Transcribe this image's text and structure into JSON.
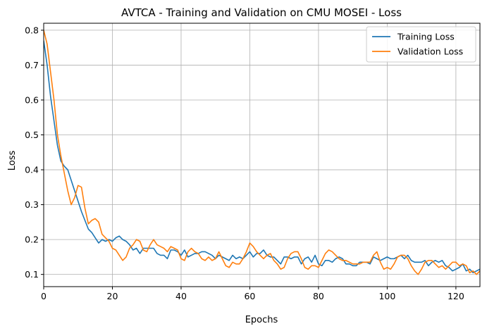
{
  "chart_data": {
    "type": "line",
    "title": "AVTCA - Training and Validation on CMU MOSEI - Loss",
    "xlabel": "Epochs",
    "ylabel": "Loss",
    "xlim": [
      0,
      127
    ],
    "ylim": [
      0.065,
      0.82
    ],
    "xticks": [
      0,
      20,
      40,
      60,
      80,
      100,
      120
    ],
    "yticks": [
      0.1,
      0.2,
      0.3,
      0.4,
      0.5,
      0.6,
      0.7,
      0.8
    ],
    "grid": true,
    "legend": "top-right",
    "series": [
      {
        "name": "Training Loss",
        "color": "#1f77b4",
        "values": [
          0.77,
          0.7,
          0.61,
          0.54,
          0.47,
          0.425,
          0.41,
          0.4,
          0.37,
          0.34,
          0.31,
          0.28,
          0.255,
          0.23,
          0.22,
          0.205,
          0.19,
          0.2,
          0.195,
          0.2,
          0.195,
          0.205,
          0.21,
          0.2,
          0.195,
          0.185,
          0.17,
          0.175,
          0.16,
          0.175,
          0.175,
          0.175,
          0.175,
          0.16,
          0.155,
          0.155,
          0.145,
          0.17,
          0.17,
          0.165,
          0.155,
          0.17,
          0.15,
          0.155,
          0.16,
          0.16,
          0.165,
          0.165,
          0.16,
          0.155,
          0.145,
          0.155,
          0.15,
          0.145,
          0.14,
          0.155,
          0.145,
          0.15,
          0.145,
          0.155,
          0.165,
          0.15,
          0.16,
          0.16,
          0.17,
          0.155,
          0.15,
          0.15,
          0.14,
          0.13,
          0.15,
          0.15,
          0.145,
          0.15,
          0.15,
          0.13,
          0.145,
          0.15,
          0.135,
          0.155,
          0.13,
          0.125,
          0.14,
          0.14,
          0.135,
          0.145,
          0.15,
          0.145,
          0.13,
          0.13,
          0.125,
          0.125,
          0.135,
          0.135,
          0.135,
          0.13,
          0.15,
          0.145,
          0.14,
          0.145,
          0.15,
          0.145,
          0.145,
          0.15,
          0.155,
          0.145,
          0.155,
          0.14,
          0.135,
          0.135,
          0.135,
          0.14,
          0.125,
          0.135,
          0.14,
          0.135,
          0.14,
          0.125,
          0.12,
          0.11,
          0.115,
          0.12,
          0.13,
          0.11,
          0.115,
          0.105,
          0.11,
          0.115
        ]
      },
      {
        "name": "Validation Loss",
        "color": "#ff7f0e",
        "values": [
          0.8,
          0.76,
          0.68,
          0.6,
          0.5,
          0.44,
          0.39,
          0.34,
          0.3,
          0.32,
          0.355,
          0.35,
          0.29,
          0.245,
          0.255,
          0.26,
          0.25,
          0.215,
          0.205,
          0.195,
          0.175,
          0.17,
          0.155,
          0.14,
          0.15,
          0.175,
          0.185,
          0.2,
          0.195,
          0.17,
          0.165,
          0.185,
          0.2,
          0.185,
          0.18,
          0.175,
          0.165,
          0.18,
          0.175,
          0.17,
          0.145,
          0.14,
          0.165,
          0.175,
          0.165,
          0.16,
          0.145,
          0.14,
          0.15,
          0.14,
          0.145,
          0.165,
          0.145,
          0.125,
          0.12,
          0.135,
          0.13,
          0.13,
          0.145,
          0.165,
          0.19,
          0.18,
          0.165,
          0.155,
          0.145,
          0.155,
          0.16,
          0.14,
          0.13,
          0.115,
          0.12,
          0.145,
          0.16,
          0.165,
          0.165,
          0.145,
          0.12,
          0.115,
          0.125,
          0.125,
          0.12,
          0.14,
          0.16,
          0.17,
          0.165,
          0.155,
          0.145,
          0.14,
          0.14,
          0.135,
          0.13,
          0.13,
          0.13,
          0.135,
          0.135,
          0.135,
          0.155,
          0.165,
          0.135,
          0.115,
          0.12,
          0.115,
          0.13,
          0.15,
          0.155,
          0.155,
          0.145,
          0.125,
          0.11,
          0.1,
          0.115,
          0.135,
          0.14,
          0.14,
          0.13,
          0.12,
          0.125,
          0.115,
          0.125,
          0.135,
          0.135,
          0.125,
          0.13,
          0.125,
          0.105,
          0.11,
          0.1,
          0.11
        ]
      }
    ]
  }
}
